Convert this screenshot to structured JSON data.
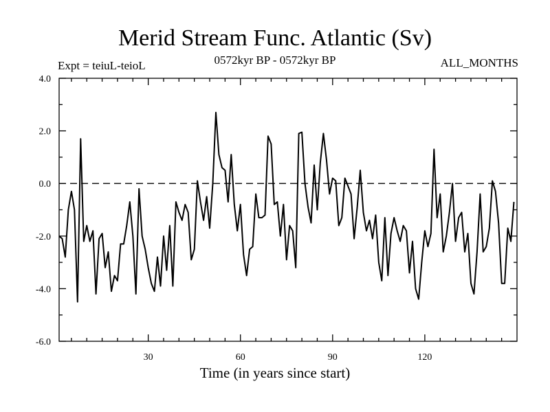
{
  "chart_data": {
    "type": "line",
    "title": "Merid Stream Func. Atlantic (Sv)",
    "subtitle_left": "Expt = teiuL-teioL",
    "subtitle_center": "0572kyr BP - 0572kyr BP",
    "subtitle_right": "ALL_MONTHS",
    "xlabel": "Time (in years since start)",
    "ylabel": "",
    "xlim": [
      1,
      150
    ],
    "ylim": [
      -6.0,
      4.0
    ],
    "x_ticks": [
      30,
      60,
      90,
      120
    ],
    "x_tick_labels": [
      "30",
      "60",
      "90",
      "120"
    ],
    "y_ticks": [
      -6.0,
      -4.0,
      -2.0,
      0.0,
      2.0,
      4.0
    ],
    "y_tick_labels": [
      "-6.0",
      "-4.0",
      "-2.0",
      "0.0",
      "2.0",
      "4.0"
    ],
    "reference_line": {
      "y": 0.0,
      "style": "dashed"
    },
    "series": [
      {
        "name": "Merid Stream Func. Atlantic",
        "color": "#000000",
        "x_start": 1,
        "x_step": 1,
        "values": [
          -2.0,
          -2.1,
          -2.8,
          -1.0,
          -0.3,
          -1.0,
          -4.5,
          1.7,
          -2.2,
          -1.6,
          -2.2,
          -1.8,
          -4.2,
          -2.1,
          -1.9,
          -3.2,
          -2.6,
          -4.1,
          -3.5,
          -3.7,
          -2.3,
          -2.3,
          -1.6,
          -0.7,
          -2.0,
          -4.2,
          -0.2,
          -2.0,
          -2.5,
          -3.2,
          -3.8,
          -4.1,
          -2.8,
          -3.9,
          -2.0,
          -3.3,
          -1.6,
          -3.9,
          -0.7,
          -1.1,
          -1.4,
          -0.8,
          -1.1,
          -2.9,
          -2.5,
          0.1,
          -0.7,
          -1.4,
          -0.5,
          -1.7,
          0.0,
          2.7,
          1.1,
          0.6,
          0.5,
          -0.7,
          1.1,
          -0.8,
          -1.8,
          -0.8,
          -2.7,
          -3.5,
          -2.5,
          -2.4,
          -0.4,
          -1.3,
          -1.3,
          -1.2,
          1.8,
          1.5,
          -0.8,
          -0.7,
          -2.0,
          -0.8,
          -2.9,
          -1.6,
          -1.8,
          -3.2,
          1.9,
          1.95,
          0.0,
          -0.9,
          -1.5,
          0.7,
          -1.0,
          0.8,
          1.9,
          0.9,
          -0.4,
          0.2,
          0.1,
          -1.6,
          -1.3,
          0.2,
          -0.1,
          -0.4,
          -2.1,
          -0.9,
          0.5,
          -1.1,
          -1.8,
          -1.4,
          -2.1,
          -1.2,
          -3.0,
          -3.7,
          -1.3,
          -3.5,
          -1.9,
          -1.3,
          -1.8,
          -2.2,
          -1.6,
          -1.8,
          -3.4,
          -2.2,
          -4.0,
          -4.4,
          -3.0,
          -1.8,
          -2.4,
          -1.9,
          1.3,
          -1.3,
          -0.4,
          -2.6,
          -2.0,
          -1.1,
          0.0,
          -2.2,
          -1.3,
          -1.1,
          -2.6,
          -1.9,
          -3.8,
          -4.2,
          -2.6,
          -0.4,
          -2.6,
          -2.4,
          -1.7,
          0.1,
          -0.3,
          -1.5,
          -3.8,
          -3.8,
          -1.7,
          -2.2,
          -0.7
        ]
      }
    ]
  }
}
